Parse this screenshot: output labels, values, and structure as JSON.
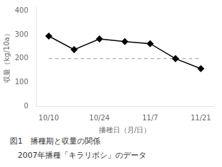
{
  "chart_data": {
    "type": "line",
    "x_label": "播種日（月/日）",
    "y_label": "収量（kg/10a）",
    "categories": [
      "10/10",
      null,
      "10/24",
      null,
      "11/7",
      null,
      "11/21"
    ],
    "series": [
      {
        "values": [
          295,
          238,
          283,
          272,
          263,
          200,
          158
        ],
        "color": "#000000",
        "marker": "diamond",
        "line_style": "solid"
      },
      {
        "values": [
          200,
          200,
          200,
          200,
          200,
          200,
          200
        ],
        "color": "#999999",
        "marker": "none",
        "line_style": "dashed"
      }
    ],
    "ylim": [
      0,
      420
    ],
    "yticks": [
      0,
      100,
      200,
      300,
      400
    ],
    "grid": false,
    "annotations": [
      "図1　播種期と収量の関係",
      "　2007年播種「キラリボシ」のデータ"
    ]
  }
}
